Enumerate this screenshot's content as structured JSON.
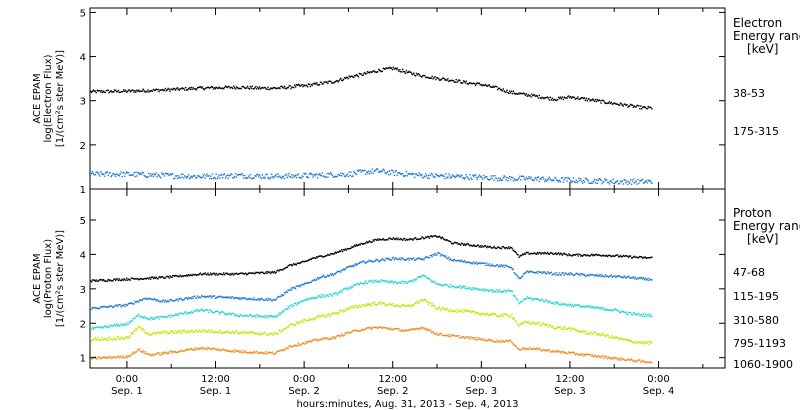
{
  "colors": {
    "black": "#000000",
    "blue": "#1f78d1",
    "cyan": "#25d3d3",
    "yellowgreen": "#c9e000",
    "orange": "#f08a1c"
  },
  "chart_data": [
    {
      "type": "scatter",
      "panel": "electron",
      "ylabel_lines": [
        "ACE EPAM",
        "log(Electron Flux)",
        "[1/(cm²s ster MeV)]"
      ],
      "ylim": [
        1,
        5.1
      ],
      "yticks": [
        1,
        2,
        3,
        4,
        5
      ],
      "ytick_labels": [
        "1",
        "2",
        "3",
        "4",
        "5"
      ],
      "legend_title": [
        "Electron",
        "Energy ranges",
        "[keV]"
      ],
      "series": [
        {
          "name": "38-53",
          "color_key": "black",
          "x": [
            -10,
            0,
            10,
            20,
            30,
            36,
            40,
            44,
            46,
            48,
            52,
            56,
            60,
            64,
            68,
            72,
            76,
            80,
            82,
            84,
            88,
            92,
            96,
            100,
            104,
            108,
            112,
            116,
            120,
            124,
            128,
            132,
            136,
            140,
            142
          ],
          "y": [
            3.22,
            3.23,
            3.26,
            3.3,
            3.32,
            3.3,
            3.3,
            3.32,
            3.35,
            3.35,
            3.4,
            3.45,
            3.55,
            3.62,
            3.7,
            3.75,
            3.65,
            3.58,
            3.55,
            3.52,
            3.48,
            3.42,
            3.38,
            3.3,
            3.2,
            3.15,
            3.1,
            3.05,
            3.1,
            3.05,
            3.0,
            2.95,
            2.9,
            2.85,
            2.85
          ],
          "noise": 0.035
        },
        {
          "name": "175-315",
          "color_key": "blue",
          "x": [
            -10,
            0,
            10,
            20,
            30,
            40,
            50,
            60,
            64,
            68,
            72,
            76,
            80,
            88,
            96,
            104,
            110,
            116,
            120,
            124,
            128,
            132,
            136,
            140,
            142
          ],
          "y": [
            1.35,
            1.35,
            1.32,
            1.3,
            1.32,
            1.3,
            1.32,
            1.35,
            1.4,
            1.42,
            1.38,
            1.35,
            1.32,
            1.3,
            1.28,
            1.25,
            1.25,
            1.22,
            1.22,
            1.2,
            1.2,
            1.18,
            1.18,
            1.18,
            1.18
          ],
          "noise": 0.06
        }
      ]
    },
    {
      "type": "scatter",
      "panel": "proton",
      "ylabel_lines": [
        "ACE EPAM",
        "log(Proton Flux)",
        "[1/(cm²s ster MeV)]"
      ],
      "ylim": [
        0.7,
        5.9
      ],
      "yticks": [
        1,
        2,
        3,
        4,
        5
      ],
      "ytick_labels": [
        "1",
        "2",
        "3",
        "4",
        "5"
      ],
      "legend_title": [
        "Proton",
        "Energy ranges",
        "[keV]"
      ],
      "xlabel": "hours:minutes, Aug. 31, 2013 - Sep.  4, 2013",
      "xlim": [
        -10,
        162
      ],
      "xticks": [
        0,
        12,
        24,
        36,
        48,
        60,
        72,
        84,
        96,
        108,
        120,
        132,
        144,
        156
      ],
      "xtick_labels": [
        [
          "0:00",
          "Sep. 1"
        ],
        [
          "",
          ""
        ],
        [
          "12:00",
          "Sep. 1"
        ],
        [
          "",
          ""
        ],
        [
          "0:00",
          "Sep. 2"
        ],
        [
          "",
          ""
        ],
        [
          "12:00",
          "Sep. 2"
        ],
        [
          "",
          ""
        ],
        [
          "0:00",
          "Sep. 3"
        ],
        [
          "",
          ""
        ],
        [
          "12:00",
          "Sep. 3"
        ],
        [
          "",
          ""
        ],
        [
          "0:00",
          "Sep. 4"
        ],
        [
          "",
          ""
        ]
      ],
      "series": [
        {
          "name": "47-68",
          "color_key": "black",
          "x": [
            -10,
            0,
            10,
            20,
            30,
            40,
            44,
            48,
            50,
            52,
            56,
            60,
            64,
            68,
            72,
            76,
            80,
            84,
            88,
            92,
            94,
            96,
            100,
            104,
            106,
            108,
            112,
            116,
            120,
            124,
            128,
            132,
            136,
            140,
            142
          ],
          "y": [
            3.25,
            3.3,
            3.35,
            3.45,
            3.45,
            3.5,
            3.7,
            3.8,
            3.9,
            3.95,
            4.05,
            4.2,
            4.35,
            4.45,
            4.48,
            4.45,
            4.5,
            4.55,
            4.35,
            4.3,
            4.28,
            4.25,
            4.22,
            4.22,
            3.95,
            4.05,
            4.05,
            4.05,
            4.0,
            4.0,
            4.0,
            3.98,
            3.95,
            3.92,
            3.92
          ],
          "noise": 0.03
        },
        {
          "name": "115-195",
          "color_key": "blue",
          "x": [
            -10,
            0,
            5,
            10,
            20,
            30,
            40,
            44,
            48,
            52,
            56,
            60,
            64,
            68,
            72,
            76,
            80,
            84,
            88,
            92,
            96,
            100,
            104,
            106,
            108,
            112,
            116,
            120,
            124,
            128,
            132,
            136,
            140,
            142
          ],
          "y": [
            2.45,
            2.55,
            2.75,
            2.65,
            2.8,
            2.75,
            2.7,
            3.0,
            3.15,
            3.35,
            3.45,
            3.65,
            3.8,
            3.85,
            3.9,
            3.88,
            3.88,
            4.05,
            3.85,
            3.8,
            3.75,
            3.7,
            3.65,
            3.3,
            3.5,
            3.5,
            3.45,
            3.45,
            3.42,
            3.4,
            3.38,
            3.35,
            3.3,
            3.3
          ],
          "noise": 0.035
        },
        {
          "name": "310-580",
          "color_key": "cyan",
          "x": [
            -10,
            0,
            3,
            6,
            10,
            20,
            30,
            40,
            44,
            48,
            52,
            56,
            60,
            64,
            68,
            72,
            76,
            80,
            84,
            88,
            92,
            96,
            100,
            104,
            106,
            108,
            112,
            116,
            120,
            124,
            128,
            132,
            136,
            140,
            142
          ],
          "y": [
            1.85,
            2.0,
            2.25,
            2.15,
            2.2,
            2.4,
            2.25,
            2.2,
            2.5,
            2.7,
            2.8,
            2.85,
            3.05,
            3.2,
            3.25,
            3.2,
            3.2,
            3.4,
            3.15,
            3.1,
            3.05,
            3.0,
            2.95,
            2.95,
            2.6,
            2.75,
            2.7,
            2.6,
            2.55,
            2.5,
            2.45,
            2.4,
            2.3,
            2.25,
            2.25
          ],
          "noise": 0.04
        },
        {
          "name": "795-1193",
          "color_key": "yellowgreen",
          "x": [
            -10,
            0,
            3,
            6,
            10,
            20,
            30,
            40,
            44,
            48,
            52,
            56,
            60,
            64,
            68,
            72,
            76,
            80,
            84,
            88,
            92,
            96,
            100,
            104,
            106,
            108,
            112,
            116,
            120,
            124,
            128,
            132,
            136,
            140,
            142
          ],
          "y": [
            1.55,
            1.6,
            1.9,
            1.7,
            1.75,
            1.8,
            1.75,
            1.7,
            1.95,
            2.1,
            2.2,
            2.3,
            2.45,
            2.55,
            2.6,
            2.55,
            2.5,
            2.7,
            2.45,
            2.4,
            2.35,
            2.3,
            2.25,
            2.25,
            1.95,
            2.05,
            2.0,
            1.9,
            1.85,
            1.75,
            1.7,
            1.6,
            1.5,
            1.45,
            1.45
          ],
          "noise": 0.045
        },
        {
          "name": "1060-1900",
          "color_key": "orange",
          "x": [
            -10,
            0,
            3,
            6,
            10,
            20,
            30,
            40,
            44,
            48,
            52,
            56,
            60,
            64,
            68,
            72,
            76,
            80,
            84,
            88,
            92,
            96,
            100,
            104,
            106,
            108,
            112,
            116,
            120,
            124,
            128,
            132,
            136,
            140,
            142
          ],
          "y": [
            1.0,
            1.05,
            1.25,
            1.1,
            1.15,
            1.3,
            1.2,
            1.15,
            1.35,
            1.45,
            1.55,
            1.6,
            1.75,
            1.85,
            1.9,
            1.85,
            1.8,
            1.9,
            1.7,
            1.65,
            1.6,
            1.55,
            1.5,
            1.5,
            1.25,
            1.3,
            1.25,
            1.2,
            1.15,
            1.1,
            1.05,
            1.0,
            0.95,
            0.9,
            0.9
          ],
          "noise": 0.035
        }
      ]
    }
  ]
}
